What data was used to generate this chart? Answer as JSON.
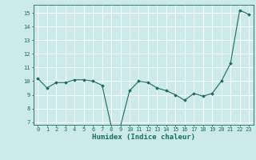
{
  "x": [
    0,
    1,
    2,
    3,
    4,
    5,
    6,
    7,
    8,
    9,
    10,
    11,
    12,
    13,
    14,
    15,
    16,
    17,
    18,
    19,
    20,
    21,
    22,
    23
  ],
  "y": [
    10.2,
    9.5,
    9.9,
    9.9,
    10.1,
    10.1,
    10.0,
    9.7,
    6.7,
    6.7,
    9.3,
    10.0,
    9.9,
    9.5,
    9.3,
    9.0,
    8.6,
    9.1,
    8.9,
    9.1,
    10.0,
    11.3,
    15.2,
    14.9
  ],
  "xlabel": "Humidex (Indice chaleur)",
  "ylim": [
    6.8,
    15.6
  ],
  "xlim": [
    -0.5,
    23.5
  ],
  "yticks": [
    7,
    8,
    9,
    10,
    11,
    12,
    13,
    14,
    15
  ],
  "xticks": [
    0,
    1,
    2,
    3,
    4,
    5,
    6,
    7,
    8,
    9,
    10,
    11,
    12,
    13,
    14,
    15,
    16,
    17,
    18,
    19,
    20,
    21,
    22,
    23
  ],
  "line_color": "#1a6b5a",
  "marker": "D",
  "marker_size": 1.8,
  "bg_color": "#cceaea",
  "grid_color": "#ffffff",
  "tick_color": "#1a6b5a",
  "label_color": "#1a6b5a",
  "font_family": "monospace",
  "tick_fontsize": 5.0,
  "xlabel_fontsize": 6.5
}
